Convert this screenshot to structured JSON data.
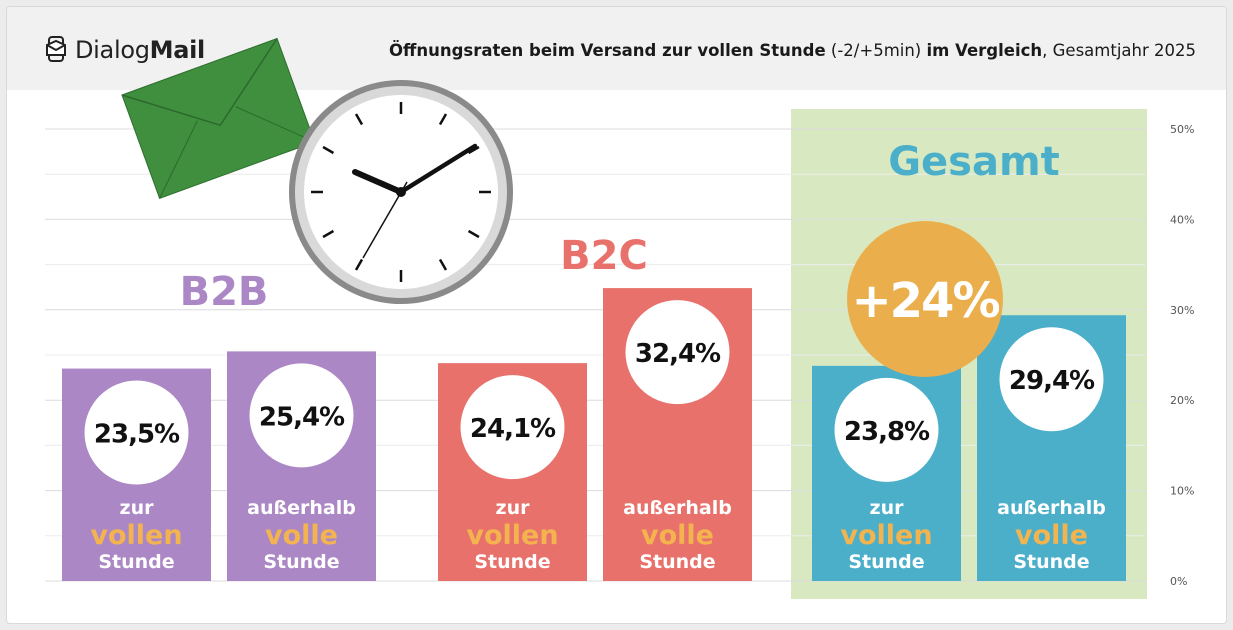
{
  "brand": {
    "logo_regular": "Dialog",
    "logo_bold": "Mail",
    "icon": "mail-phone-icon"
  },
  "header": {
    "title_bold_1": "Öffnungsraten beim Versand zur vollen Stunde",
    "title_regular_1": " (-2/+5min) ",
    "title_bold_2": "im Vergleich",
    "title_regular_2": ", Gesamtjahr 2025"
  },
  "chart_data": {
    "type": "bar",
    "ylim": [
      0,
      50
    ],
    "y_ticks": [
      "0%",
      "10%",
      "20%",
      "30%",
      "40%",
      "50%"
    ],
    "grid": true,
    "groups": [
      {
        "name": "B2B",
        "color": "#ab87c5",
        "bars": [
          {
            "value": 23.5,
            "value_label": "23,5%",
            "label_top": "zur",
            "label_mid": "vollen",
            "label_bottom": "Stunde"
          },
          {
            "value": 25.4,
            "value_label": "25,4%",
            "label_top": "außerhalb",
            "label_mid": "volle",
            "label_bottom": "Stunde"
          }
        ]
      },
      {
        "name": "B2C",
        "color": "#e8716b",
        "bars": [
          {
            "value": 24.1,
            "value_label": "24,1%",
            "label_top": "zur",
            "label_mid": "vollen",
            "label_bottom": "Stunde"
          },
          {
            "value": 32.4,
            "value_label": "32,4%",
            "label_top": "außerhalb",
            "label_mid": "volle",
            "label_bottom": "Stunde"
          }
        ]
      },
      {
        "name": "Gesamt",
        "color": "#4bafc9",
        "highlight": "#d8e9c2",
        "bars": [
          {
            "value": 23.8,
            "value_label": "23,8%",
            "label_top": "zur",
            "label_mid": "vollen",
            "label_bottom": "Stunde"
          },
          {
            "value": 29.4,
            "value_label": "29,4%",
            "label_top": "außerhalb",
            "label_mid": "volle",
            "label_bottom": "Stunde"
          }
        ]
      }
    ],
    "annotation": {
      "text": "+24%",
      "color": "#eaae4c"
    },
    "label_accent_color": "#f3b44f"
  }
}
